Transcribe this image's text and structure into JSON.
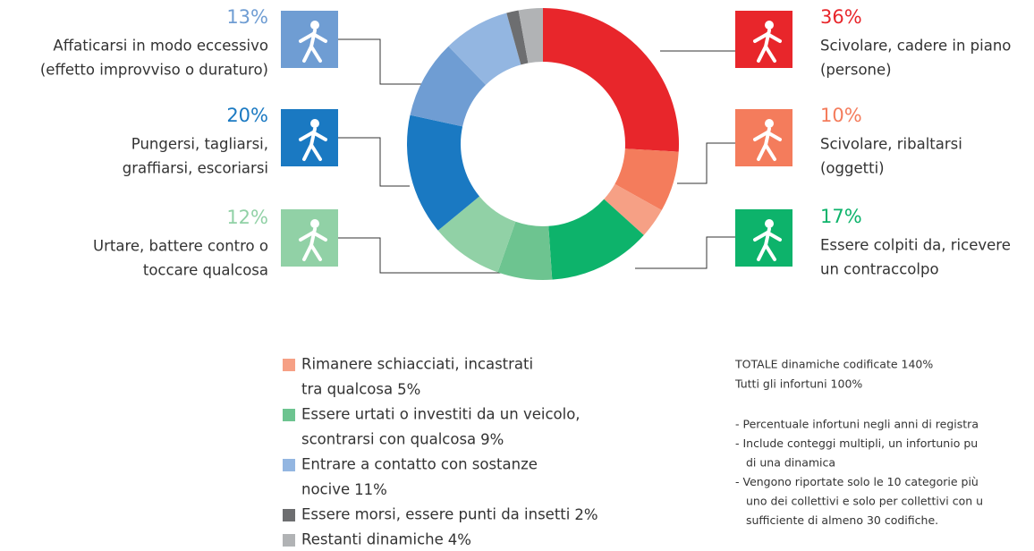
{
  "chart_data": {
    "type": "donut",
    "categories": [
      [
        "Scivolare, cadere in piano",
        "(persone)"
      ],
      [
        "Scivolare, ribaltarsi",
        "(oggetti)"
      ],
      [
        "Rimanere schiacciati, incastrati",
        "tra qualcosa"
      ],
      [
        "Essere colpiti da, ricevere",
        "un contraccolpo"
      ],
      [
        "Essere urtati o investiti da un veicolo,",
        "scontrarsi con qualcosa"
      ],
      [
        "Urtare, battere contro o",
        "toccare qualcosa"
      ],
      [
        "Pungersi, tagliarsi,",
        "graffiarsi, escoriarsi"
      ],
      [
        "Affaticarsi in modo eccessivo",
        "(effetto improvviso o duraturo)"
      ],
      [
        "Entrare a contatto con sostanze",
        "nocive"
      ],
      [
        "Essere morsi, essere punti da insetti"
      ],
      [
        "Restanti dinamiche"
      ]
    ],
    "values": [
      36,
      10,
      5,
      17,
      9,
      12,
      20,
      13,
      11,
      2,
      4
    ],
    "value_labels": [
      "36%",
      "10%",
      "5%",
      "17%",
      "9%",
      "12%",
      "20%",
      "13%",
      "11%",
      "2%",
      "4%"
    ],
    "colors": [
      "#e8262b",
      "#f47c5c",
      "#f6a085",
      "#0db36b",
      "#6dc490",
      "#91d1a6",
      "#1a79c2",
      "#6f9dd3",
      "#93b6e1",
      "#6d6e70",
      "#b1b3b5"
    ],
    "notes": [
      "TOTALE dinamiche codificate 140%",
      "Tutti gli infortuni 100%"
    ],
    "footnotes": [
      [
        "- Percentuale infortuni negli anni di registra"
      ],
      [
        "- Include conteggi multipli, un infortunio pu",
        "di una dinamica"
      ],
      [
        "- Vengono riportate solo le 10 categorie più",
        "uno dei collettivi e solo per collettivi con u",
        "sufficiente di almeno 30 codifiche."
      ]
    ]
  }
}
